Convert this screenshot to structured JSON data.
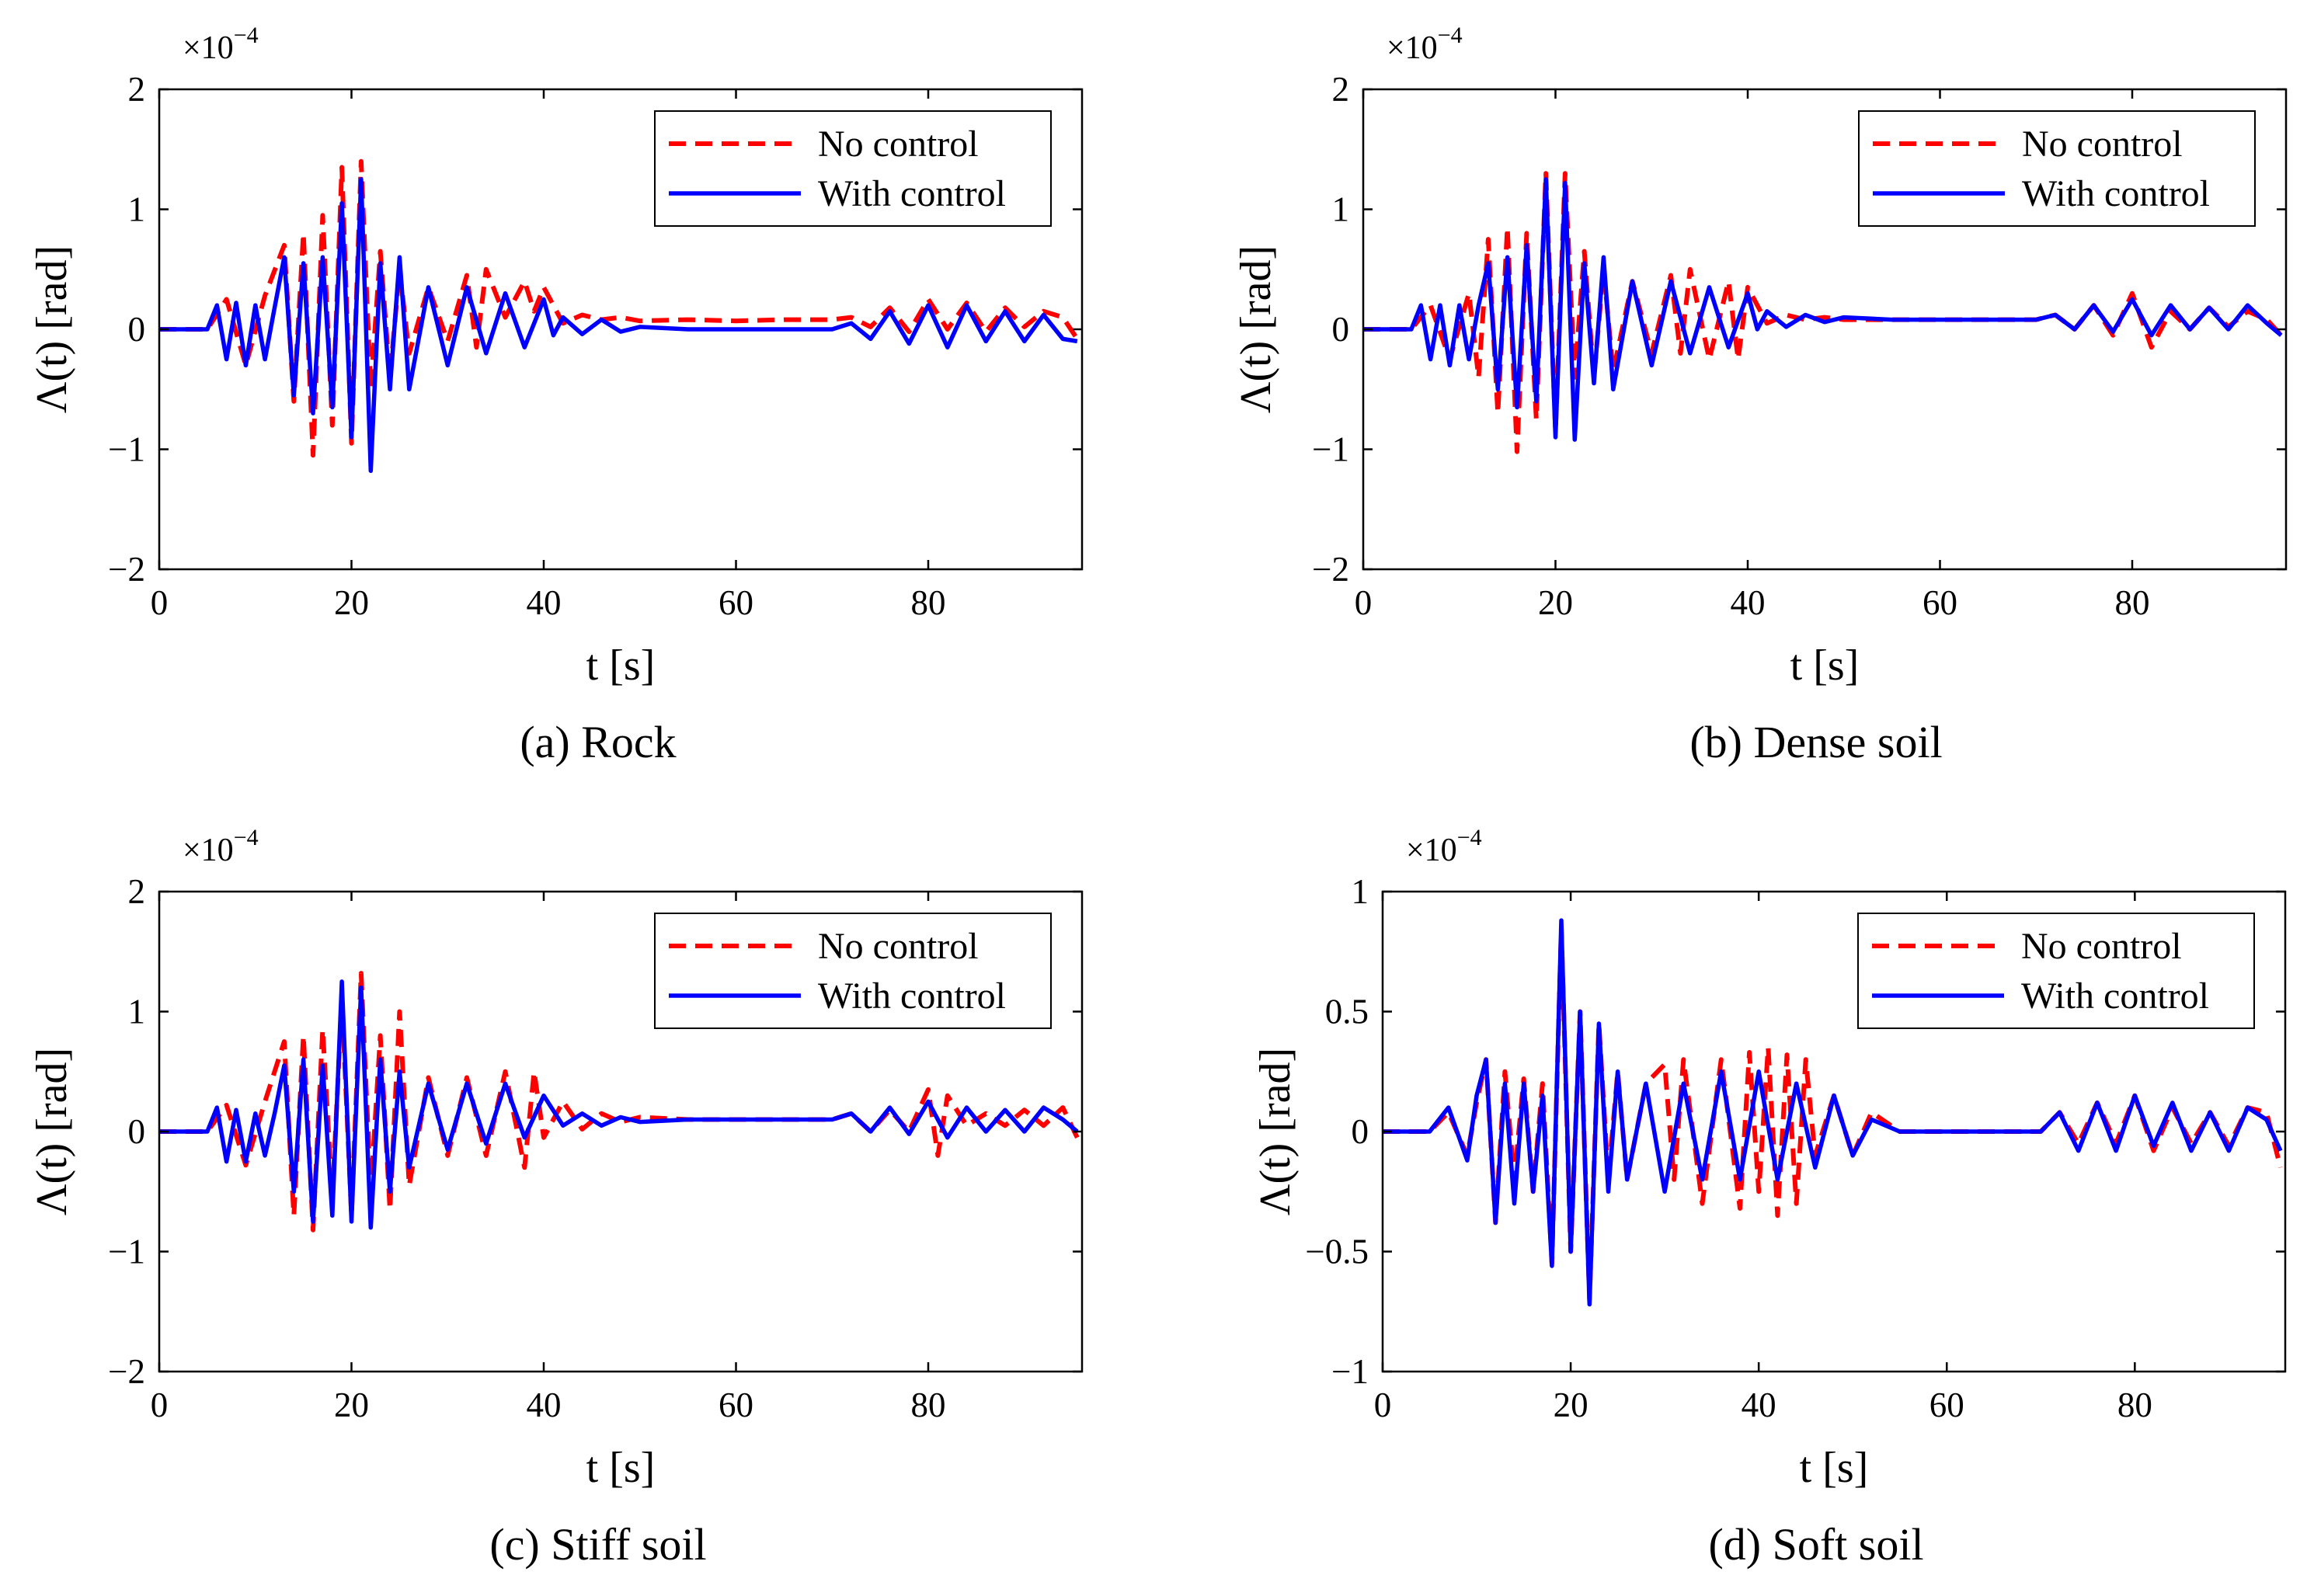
{
  "chart_data": [
    {
      "type": "line",
      "caption": "(a) Rock",
      "xlabel": "t [s]",
      "ylabel": "Λ(t) [rad]",
      "xlim": [
        0,
        96
      ],
      "ylim": [
        -2,
        2
      ],
      "xticks": [
        0,
        20,
        40,
        60,
        80
      ],
      "yticks": [
        -2,
        -1,
        0,
        1,
        2
      ],
      "ytick_labels": [
        "−2",
        "−1",
        "0",
        "1",
        "2"
      ],
      "multiplier": "×10",
      "multiplier_exp": "−4",
      "legend_position": "top-right",
      "series": [
        {
          "name": "No control",
          "color": "#ff0000",
          "style": "dashed",
          "x": [
            0,
            5,
            7,
            9,
            11,
            13,
            14,
            15,
            16,
            17,
            18,
            19,
            20,
            21,
            22,
            23,
            24,
            25,
            26,
            28,
            30,
            32,
            33,
            34,
            36,
            38,
            39,
            40,
            42,
            44,
            46,
            48,
            50,
            55,
            60,
            65,
            70,
            72,
            74,
            76,
            78,
            80,
            82,
            84,
            86,
            88,
            90,
            92,
            94,
            95.5
          ],
          "y": [
            0,
            0,
            0.25,
            -0.3,
            0.28,
            0.7,
            -0.6,
            0.8,
            -1.05,
            0.95,
            -0.8,
            1.35,
            -0.95,
            1.4,
            -0.5,
            0.65,
            -0.4,
            0.5,
            -0.2,
            0.35,
            -0.1,
            0.45,
            -0.15,
            0.5,
            0.1,
            0.4,
            0.15,
            0.35,
            0.05,
            0.12,
            0.08,
            0.1,
            0.07,
            0.08,
            0.07,
            0.08,
            0.08,
            0.1,
            0.02,
            0.18,
            -0.02,
            0.25,
            0.0,
            0.22,
            -0.02,
            0.18,
            0.02,
            0.15,
            0.1,
            -0.08
          ]
        },
        {
          "name": "With control",
          "color": "#0000ff",
          "style": "solid",
          "x": [
            0,
            5,
            6,
            7,
            8,
            9,
            10,
            11,
            12,
            13,
            14,
            15,
            16,
            17,
            18,
            19,
            20,
            21,
            22,
            23,
            24,
            25,
            26,
            28,
            30,
            32,
            34,
            36,
            38,
            40,
            41,
            42,
            44,
            46,
            48,
            50,
            55,
            60,
            65,
            70,
            72,
            74,
            76,
            78,
            80,
            82,
            84,
            86,
            88,
            90,
            92,
            94,
            95.5
          ],
          "y": [
            0,
            0,
            0.2,
            -0.25,
            0.22,
            -0.3,
            0.2,
            -0.25,
            0.18,
            0.6,
            -0.55,
            0.55,
            -0.7,
            0.6,
            -0.65,
            1.05,
            -0.9,
            1.25,
            -1.18,
            0.55,
            -0.5,
            0.6,
            -0.5,
            0.35,
            -0.3,
            0.35,
            -0.2,
            0.3,
            -0.15,
            0.25,
            -0.05,
            0.1,
            -0.04,
            0.08,
            -0.02,
            0.02,
            0.0,
            0.0,
            0.0,
            0.0,
            0.05,
            -0.08,
            0.15,
            -0.12,
            0.2,
            -0.15,
            0.2,
            -0.1,
            0.15,
            -0.1,
            0.12,
            -0.08,
            -0.1
          ]
        }
      ]
    },
    {
      "type": "line",
      "caption": "(b) Dense soil",
      "xlabel": "t [s]",
      "ylabel": "Λ(t) [rad]",
      "xlim": [
        0,
        96
      ],
      "ylim": [
        -2,
        2
      ],
      "xticks": [
        0,
        20,
        40,
        60,
        80
      ],
      "yticks": [
        -2,
        -1,
        0,
        1,
        2
      ],
      "ytick_labels": [
        "−2",
        "−1",
        "0",
        "1",
        "2"
      ],
      "multiplier": "×10",
      "multiplier_exp": "−4",
      "legend_position": "top-right",
      "series": [
        {
          "name": "No control",
          "color": "#ff0000",
          "style": "dashed",
          "x": [
            0,
            5,
            7,
            9,
            11,
            12,
            13,
            14,
            15,
            16,
            17,
            18,
            19,
            20,
            21,
            22,
            23,
            24,
            25,
            26,
            28,
            30,
            32,
            33,
            34,
            36,
            38,
            39,
            40,
            42,
            44,
            46,
            48,
            50,
            55,
            60,
            65,
            70,
            72,
            74,
            76,
            78,
            80,
            82,
            84,
            86,
            88,
            90,
            92,
            94,
            95.5
          ],
          "y": [
            0,
            0,
            0.2,
            -0.25,
            0.3,
            -0.4,
            0.75,
            -0.7,
            0.85,
            -1.02,
            0.8,
            -0.75,
            1.3,
            -0.85,
            1.3,
            -0.4,
            0.65,
            -0.4,
            0.5,
            -0.35,
            0.4,
            -0.2,
            0.45,
            -0.2,
            0.5,
            -0.25,
            0.4,
            -0.25,
            0.35,
            0.05,
            0.12,
            0.08,
            0.1,
            0.08,
            0.08,
            0.08,
            0.08,
            0.08,
            0.12,
            0.0,
            0.2,
            -0.05,
            0.3,
            -0.15,
            0.15,
            0.0,
            0.18,
            0.02,
            0.15,
            0.08,
            -0.05
          ]
        },
        {
          "name": "With control",
          "color": "#0000ff",
          "style": "solid",
          "x": [
            0,
            5,
            6,
            7,
            8,
            9,
            10,
            11,
            12,
            13,
            14,
            15,
            16,
            17,
            18,
            19,
            20,
            21,
            22,
            23,
            24,
            25,
            26,
            28,
            30,
            32,
            34,
            36,
            38,
            40,
            41,
            42,
            44,
            46,
            48,
            50,
            55,
            60,
            65,
            70,
            72,
            74,
            76,
            78,
            80,
            82,
            84,
            86,
            88,
            90,
            92,
            94,
            95.5
          ],
          "y": [
            0,
            0,
            0.2,
            -0.25,
            0.2,
            -0.3,
            0.2,
            -0.25,
            0.2,
            0.55,
            -0.5,
            0.6,
            -0.65,
            0.7,
            -0.6,
            1.25,
            -0.9,
            1.22,
            -0.92,
            0.55,
            -0.45,
            0.6,
            -0.5,
            0.4,
            -0.3,
            0.4,
            -0.2,
            0.35,
            -0.15,
            0.3,
            0.0,
            0.15,
            0.02,
            0.12,
            0.06,
            0.1,
            0.08,
            0.08,
            0.08,
            0.08,
            0.12,
            0.0,
            0.2,
            -0.02,
            0.25,
            -0.05,
            0.2,
            0.0,
            0.18,
            0.0,
            0.2,
            0.05,
            -0.05
          ]
        }
      ]
    },
    {
      "type": "line",
      "caption": "(c) Stiff soil",
      "xlabel": "t [s]",
      "ylabel": "Λ(t) [rad]",
      "xlim": [
        0,
        96
      ],
      "ylim": [
        -2,
        2
      ],
      "xticks": [
        0,
        20,
        40,
        60,
        80
      ],
      "yticks": [
        -2,
        -1,
        0,
        1,
        2
      ],
      "ytick_labels": [
        "−2",
        "−1",
        "0",
        "1",
        "2"
      ],
      "multiplier": "×10",
      "multiplier_exp": "−4",
      "legend_position": "top-right",
      "series": [
        {
          "name": "No control",
          "color": "#ff0000",
          "style": "dashed",
          "x": [
            0,
            5,
            7,
            9,
            11,
            13,
            14,
            15,
            16,
            17,
            18,
            19,
            20,
            21,
            22,
            23,
            24,
            25,
            26,
            28,
            30,
            32,
            34,
            36,
            38,
            39,
            40,
            42,
            44,
            46,
            48,
            50,
            55,
            60,
            65,
            70,
            72,
            74,
            76,
            78,
            80,
            81,
            82,
            84,
            86,
            88,
            90,
            92,
            94,
            95.5
          ],
          "y": [
            0,
            0,
            0.22,
            -0.28,
            0.25,
            0.75,
            -0.7,
            0.8,
            -0.82,
            0.85,
            -0.55,
            1.1,
            -0.7,
            1.32,
            -0.5,
            0.8,
            -0.65,
            1.0,
            -0.45,
            0.45,
            -0.2,
            0.45,
            -0.2,
            0.5,
            -0.3,
            0.5,
            -0.05,
            0.25,
            0.02,
            0.15,
            0.08,
            0.12,
            0.1,
            0.1,
            0.1,
            0.1,
            0.15,
            0.0,
            0.18,
            0.0,
            0.35,
            -0.2,
            0.3,
            0.05,
            0.15,
            0.05,
            0.18,
            0.05,
            0.2,
            -0.05
          ]
        },
        {
          "name": "With control",
          "color": "#0000ff",
          "style": "solid",
          "x": [
            0,
            5,
            6,
            7,
            8,
            9,
            10,
            11,
            12,
            13,
            14,
            15,
            16,
            17,
            18,
            19,
            20,
            21,
            22,
            23,
            24,
            25,
            26,
            28,
            30,
            32,
            34,
            36,
            38,
            40,
            42,
            44,
            46,
            48,
            50,
            55,
            60,
            65,
            70,
            72,
            74,
            76,
            78,
            80,
            82,
            84,
            86,
            88,
            90,
            92,
            94,
            95.5
          ],
          "y": [
            0,
            0,
            0.2,
            -0.25,
            0.18,
            -0.25,
            0.15,
            -0.2,
            0.15,
            0.55,
            -0.5,
            0.6,
            -0.75,
            0.55,
            -0.7,
            1.25,
            -0.75,
            1.2,
            -0.8,
            0.6,
            -0.5,
            0.5,
            -0.3,
            0.4,
            -0.15,
            0.4,
            -0.1,
            0.4,
            -0.05,
            0.3,
            0.05,
            0.15,
            0.05,
            0.12,
            0.08,
            0.1,
            0.1,
            0.1,
            0.1,
            0.15,
            0.0,
            0.2,
            -0.02,
            0.25,
            -0.05,
            0.2,
            0.0,
            0.18,
            0.0,
            0.2,
            0.1,
            0.0
          ]
        }
      ]
    },
    {
      "type": "line",
      "caption": "(d) Soft soil",
      "xlabel": "t [s]",
      "ylabel": "Λ(t) [rad]",
      "xlim": [
        0,
        96
      ],
      "ylim": [
        -1,
        1
      ],
      "xticks": [
        0,
        20,
        40,
        60,
        80
      ],
      "yticks": [
        -1,
        -0.5,
        0,
        0.5,
        1
      ],
      "ytick_labels": [
        "−1",
        "−0.5",
        "0",
        "0.5",
        "1"
      ],
      "multiplier": "×10",
      "multiplier_exp": "−4",
      "legend_position": "top-right",
      "series": [
        {
          "name": "No control",
          "color": "#ff0000",
          "style": "dashed",
          "x": [
            0,
            5,
            7,
            9,
            10,
            11,
            12,
            13,
            14,
            15,
            16,
            17,
            18,
            19,
            20,
            21,
            22,
            23,
            24,
            25,
            26,
            28,
            30,
            31,
            32,
            34,
            36,
            38,
            39,
            40,
            41,
            42,
            43,
            44,
            45,
            46,
            48,
            50,
            52,
            55,
            60,
            65,
            70,
            72,
            74,
            76,
            78,
            80,
            82,
            84,
            86,
            88,
            90,
            92,
            94,
            95.5
          ],
          "y": [
            0,
            0,
            0.08,
            -0.1,
            0.12,
            0.3,
            -0.38,
            0.25,
            -0.2,
            0.22,
            -0.25,
            0.2,
            -0.55,
            0.85,
            -0.5,
            0.5,
            -0.7,
            0.45,
            -0.2,
            0.25,
            -0.2,
            0.2,
            0.28,
            -0.2,
            0.3,
            -0.3,
            0.3,
            -0.32,
            0.33,
            -0.25,
            0.35,
            -0.35,
            0.32,
            -0.3,
            0.3,
            -0.1,
            0.15,
            -0.1,
            0.08,
            0.0,
            0.0,
            0.0,
            0.0,
            0.08,
            -0.05,
            0.12,
            -0.05,
            0.15,
            -0.08,
            0.1,
            -0.05,
            0.08,
            -0.06,
            0.1,
            0.08,
            -0.15
          ]
        },
        {
          "name": "With control",
          "color": "#0000ff",
          "style": "solid",
          "x": [
            0,
            5,
            7,
            9,
            10,
            11,
            12,
            13,
            14,
            15,
            16,
            17,
            18,
            19,
            20,
            21,
            22,
            23,
            24,
            25,
            26,
            28,
            30,
            32,
            34,
            36,
            38,
            40,
            42,
            44,
            46,
            48,
            50,
            52,
            55,
            60,
            65,
            70,
            72,
            74,
            76,
            78,
            80,
            82,
            84,
            86,
            88,
            90,
            92,
            94,
            95.5
          ],
          "y": [
            0,
            0,
            0.1,
            -0.12,
            0.15,
            0.3,
            -0.38,
            0.2,
            -0.3,
            0.2,
            -0.25,
            0.15,
            -0.56,
            0.88,
            -0.5,
            0.5,
            -0.72,
            0.45,
            -0.25,
            0.25,
            -0.2,
            0.2,
            -0.25,
            0.2,
            -0.2,
            0.25,
            -0.2,
            0.25,
            -0.2,
            0.2,
            -0.15,
            0.15,
            -0.1,
            0.05,
            0.0,
            0.0,
            0.0,
            0.0,
            0.08,
            -0.08,
            0.12,
            -0.08,
            0.15,
            -0.06,
            0.12,
            -0.08,
            0.08,
            -0.08,
            0.1,
            0.05,
            -0.08
          ]
        }
      ]
    }
  ]
}
